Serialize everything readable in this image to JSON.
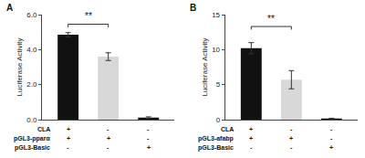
{
  "chart_data": [
    {
      "type": "bar",
      "title": "A",
      "ylabel": "Luciferase Activity",
      "categories": [
        null,
        null,
        null
      ],
      "values": [
        4.85,
        3.6,
        0.12
      ],
      "errors": [
        0.12,
        0.22,
        0.04
      ],
      "colors": [
        "#111111",
        "#d8d8d8",
        "#111111"
      ],
      "ylim": [
        0,
        6.0
      ],
      "yticks": [
        {
          "value": 0.0,
          "label": "0.0"
        },
        {
          "value": 2.0,
          "label": "2.0"
        },
        {
          "value": 4.0,
          "label": "4.0"
        },
        {
          "value": 6.0,
          "label": "6.0"
        }
      ],
      "grid": false,
      "annotations": [
        {
          "text": "**",
          "x": [
            0,
            1
          ],
          "y": 5.45
        }
      ],
      "rows": [
        {
          "label": "CLA",
          "values": [
            "+",
            "-",
            "-"
          ]
        },
        {
          "label": "pGL3-pparα",
          "values": [
            "+",
            "+",
            "-"
          ]
        },
        {
          "label": "pGL3-Basic",
          "values": [
            "-",
            "-",
            "+"
          ]
        }
      ]
    },
    {
      "type": "bar",
      "title": "B",
      "ylabel": "Luciferase Activity",
      "categories": [
        null,
        null,
        null
      ],
      "values": [
        10.2,
        5.7,
        0.15
      ],
      "errors": [
        0.8,
        1.3,
        0.05
      ],
      "colors": [
        "#111111",
        "#d8d8d8",
        "#111111"
      ],
      "ylim": [
        0,
        15
      ],
      "yticks": [
        0,
        5,
        10,
        15
      ],
      "grid": false,
      "annotations": [
        {
          "text": "**",
          "x": [
            0,
            1
          ],
          "y": 13.3
        }
      ],
      "rows": [
        {
          "label": "CLA",
          "values": [
            "+",
            "-",
            "-"
          ]
        },
        {
          "label": "pGL3-afabp",
          "values": [
            "+",
            "+",
            "-"
          ]
        },
        {
          "label": "pGL3-Basic",
          "values": [
            "-",
            "-",
            "+"
          ]
        }
      ]
    }
  ]
}
